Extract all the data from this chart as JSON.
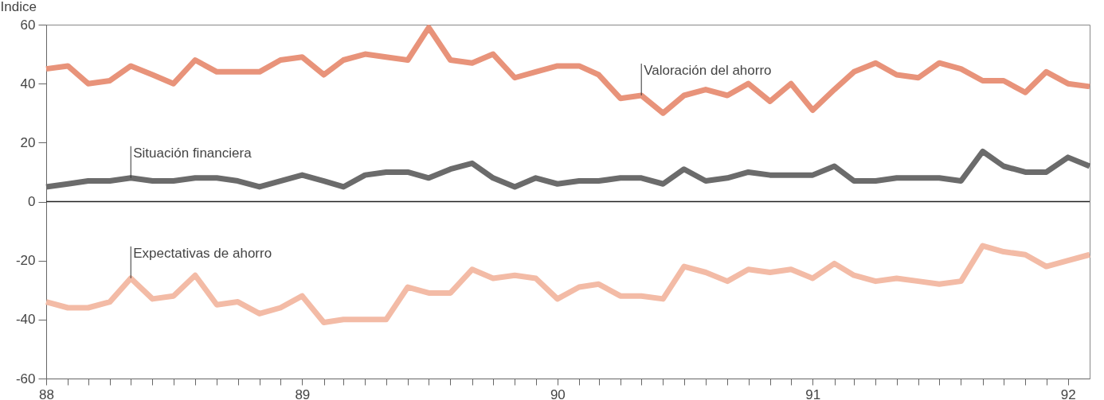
{
  "chart_data": {
    "type": "line",
    "ylabel": "Indice",
    "x": [
      "1988-01",
      "1988-02",
      "1988-03",
      "1988-04",
      "1988-05",
      "1988-06",
      "1988-07",
      "1988-08",
      "1988-09",
      "1988-10",
      "1988-11",
      "1988-12",
      "1989-01",
      "1989-02",
      "1989-03",
      "1989-04",
      "1989-05",
      "1989-06",
      "1989-07",
      "1989-08",
      "1989-09",
      "1989-10",
      "1989-11",
      "1989-12",
      "1990-01",
      "1990-02",
      "1990-03",
      "1990-04",
      "1990-05",
      "1990-06",
      "1990-07",
      "1990-08",
      "1990-09",
      "1990-10",
      "1990-11",
      "1990-12",
      "1991-01",
      "1991-02",
      "1991-03",
      "1991-04",
      "1991-05",
      "1991-06",
      "1991-07",
      "1991-08",
      "1991-09",
      "1991-10",
      "1991-11",
      "1991-12",
      "1992-01",
      "1992-02"
    ],
    "series": [
      {
        "color": "#e8937a",
        "values": [
          45,
          46,
          40,
          41,
          46,
          43,
          40,
          48,
          44,
          44,
          44,
          48,
          49,
          43,
          48,
          50,
          49,
          48,
          59,
          48,
          47,
          50,
          42,
          44,
          46,
          46,
          43,
          35,
          36,
          30,
          36,
          38,
          36,
          40,
          34,
          40,
          31,
          38,
          44,
          47,
          43,
          42,
          47,
          45,
          41,
          41,
          37,
          44,
          40,
          39
        ]
      },
      {
        "color": "#6b6b6b",
        "values": [
          5,
          6,
          7,
          7,
          8,
          7,
          7,
          8,
          8,
          7,
          5,
          7,
          9,
          7,
          5,
          9,
          10,
          10,
          8,
          11,
          13,
          8,
          5,
          8,
          6,
          7,
          7,
          8,
          8,
          6,
          11,
          7,
          8,
          10,
          9,
          9,
          9,
          12,
          7,
          7,
          8,
          8,
          8,
          7,
          17,
          12,
          10,
          10,
          15,
          12
        ]
      },
      {
        "color": "#f3bba6",
        "values": [
          -34,
          -36,
          -36,
          -34,
          -26,
          -33,
          -32,
          -25,
          -35,
          -34,
          -38,
          -36,
          -32,
          -41,
          -40,
          -40,
          -40,
          -29,
          -31,
          -31,
          -23,
          -26,
          -25,
          -26,
          -33,
          -29,
          -28,
          -32,
          -32,
          -33,
          -22,
          -24,
          -27,
          -23,
          -24,
          -23,
          -26,
          -21,
          -25,
          -27,
          -26,
          -27,
          -28,
          -27,
          -15,
          -17,
          -18,
          -22,
          -20,
          -18
        ]
      }
    ],
    "xlim": [
      "1988-01",
      "1992-02"
    ],
    "xticks": [
      {
        "value": "1988-01",
        "label": "88"
      },
      {
        "value": "1988-02",
        "label": null
      },
      {
        "value": "1988-03",
        "label": null
      },
      {
        "value": "1988-04",
        "label": null
      },
      {
        "value": "1988-05",
        "label": null
      },
      {
        "value": "1988-06",
        "label": null
      },
      {
        "value": "1988-07",
        "label": null
      },
      {
        "value": "1988-08",
        "label": null
      },
      {
        "value": "1988-09",
        "label": null
      },
      {
        "value": "1988-10",
        "label": null
      },
      {
        "value": "1988-11",
        "label": null
      },
      {
        "value": "1988-12",
        "label": null
      },
      {
        "value": "1989-01",
        "label": "89"
      },
      {
        "value": "1989-02",
        "label": null
      },
      {
        "value": "1989-03",
        "label": null
      },
      {
        "value": "1989-04",
        "label": null
      },
      {
        "value": "1989-05",
        "label": null
      },
      {
        "value": "1989-06",
        "label": null
      },
      {
        "value": "1989-07",
        "label": null
      },
      {
        "value": "1989-08",
        "label": null
      },
      {
        "value": "1989-09",
        "label": null
      },
      {
        "value": "1989-10",
        "label": null
      },
      {
        "value": "1989-11",
        "label": null
      },
      {
        "value": "1989-12",
        "label": null
      },
      {
        "value": "1990-01",
        "label": "90"
      },
      {
        "value": "1990-02",
        "label": null
      },
      {
        "value": "1990-03",
        "label": null
      },
      {
        "value": "1990-04",
        "label": null
      },
      {
        "value": "1990-05",
        "label": null
      },
      {
        "value": "1990-06",
        "label": null
      },
      {
        "value": "1990-07",
        "label": null
      },
      {
        "value": "1990-08",
        "label": null
      },
      {
        "value": "1990-09",
        "label": null
      },
      {
        "value": "1990-10",
        "label": null
      },
      {
        "value": "1990-11",
        "label": null
      },
      {
        "value": "1990-12",
        "label": null
      },
      {
        "value": "1991-01",
        "label": "91"
      },
      {
        "value": "1991-02",
        "label": null
      },
      {
        "value": "1991-03",
        "label": null
      },
      {
        "value": "1991-04",
        "label": null
      },
      {
        "value": "1991-05",
        "label": null
      },
      {
        "value": "1991-06",
        "label": null
      },
      {
        "value": "1991-07",
        "label": null
      },
      {
        "value": "1991-08",
        "label": null
      },
      {
        "value": "1991-09",
        "label": null
      },
      {
        "value": "1991-10",
        "label": null
      },
      {
        "value": "1991-11",
        "label": null
      },
      {
        "value": "1991-12",
        "label": null
      },
      {
        "value": "1992-01",
        "label": "92"
      }
    ],
    "ylim": [
      -60,
      60
    ],
    "yticks": [
      -60,
      -40,
      -20,
      0,
      20,
      40,
      60
    ],
    "ref_lines": [
      {
        "axis": "y",
        "value": 0,
        "color": "#222222"
      }
    ],
    "annotations": [
      {
        "text": "Valoración del ahorro",
        "x": "1990-05",
        "y": 36
      },
      {
        "text": "Situación financiera",
        "x": "1988-05",
        "y": 8
      },
      {
        "text": "Expectativas de ahorro",
        "x": "1988-05",
        "y": -26
      }
    ]
  }
}
